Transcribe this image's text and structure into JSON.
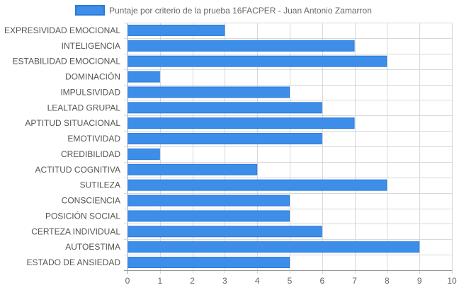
{
  "chart_data": {
    "type": "bar",
    "orientation": "horizontal",
    "categories": [
      "EXPRESIVIDAD EMOCIONAL",
      "INTELIGENCIA",
      "ESTABILIDAD EMOCIONAL",
      "DOMINACIÓN",
      "IMPULSIVIDAD",
      "LEALTAD GRUPAL",
      "APTITUD SITUACIONAL",
      "EMOTIVIDAD",
      "CREDIBILIDAD",
      "ACTITUD COGNITIVA",
      "SUTILEZA",
      "CONSCIENCIA",
      "POSICIÓN SOCIAL",
      "CERTEZA INDIVIDUAL",
      "AUTOESTIMA",
      "ESTADO DE ANSIEDAD"
    ],
    "series": [
      {
        "name": "Puntaje por criterio de la prueba 16FACPER - Juan Antonio Zamarron",
        "values": [
          3,
          7,
          8,
          1,
          5,
          6,
          7,
          6,
          1,
          4,
          8,
          5,
          5,
          6,
          9,
          5
        ]
      }
    ],
    "xlim": [
      0,
      10
    ],
    "xticks": [
      "0",
      "1",
      "2",
      "3",
      "4",
      "5",
      "6",
      "7",
      "8",
      "9",
      "10"
    ],
    "grid": true,
    "legend_position": "top",
    "colors": {
      "bar_fill": "#3d8ee8",
      "bar_border": "#2a7ad9",
      "grid": "#d8d8d8",
      "axis": "#999999"
    }
  }
}
